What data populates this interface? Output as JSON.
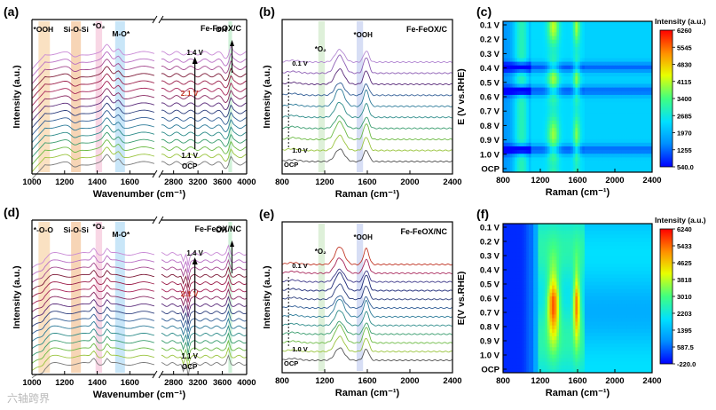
{
  "chart_data": [
    {
      "id": "a",
      "panel_label": "(a)",
      "type": "line",
      "title": "Fe-FeOX/C",
      "xlabel": "Wavenumber (cm⁻¹)",
      "ylabel": "Intensity (a.u.)",
      "xlim": [
        1000,
        4000
      ],
      "break_axis": true,
      "xticks": [
        "1000",
        "1200",
        "1400",
        "1600",
        "2800",
        "3200",
        "3600",
        "4000"
      ],
      "band_labels": [
        "*OOH",
        "Si-O-Si",
        "*O₂",
        "M-O*",
        "OH"
      ],
      "band_colors": [
        "#f6c890",
        "#f0b27a",
        "#f2b6d0",
        "#9cd2f2",
        "#a8e6b8"
      ],
      "series_count": 16,
      "potential_labels": [
        "1.4 V",
        "2.1 V",
        "1.1 V",
        "OCP"
      ],
      "series_colors": [
        "#7a7a7a",
        "#9ac43e",
        "#6dbb45",
        "#3a9d6e",
        "#2e8c8a",
        "#2f7c9a",
        "#335f97",
        "#2e3f7e",
        "#5a2b7a",
        "#8b2a63",
        "#a8265a",
        "#9c1f4a",
        "#7f1d3a",
        "#a54a8f",
        "#b86ec4",
        "#c98ad6"
      ]
    },
    {
      "id": "b",
      "panel_label": "(b)",
      "type": "line",
      "title": "Fe-FeOX/C",
      "xlabel": "Raman (cm⁻¹)",
      "ylabel": "Intensity (a.u.)",
      "xlim": [
        800,
        2400
      ],
      "xticks": [
        "800",
        "1200",
        "1600",
        "2000",
        "2400"
      ],
      "band_labels": [
        "*O₂",
        "*OOH"
      ],
      "peaks_cm": [
        1340,
        1590
      ],
      "series_count": 10,
      "potential_labels": [
        "0.1 V",
        "1.0 V",
        "OCP"
      ],
      "series_colors": [
        "#555555",
        "#9ac43e",
        "#6dbb45",
        "#3a9d6e",
        "#2e8c8a",
        "#2f7c9a",
        "#335f97",
        "#5a2b7a",
        "#8e5fb5",
        "#b48ad3"
      ]
    },
    {
      "id": "c",
      "panel_label": "(c)",
      "type": "heatmap",
      "xlabel": "Raman (cm⁻¹)",
      "ylabel": "E (V vs.RHE)",
      "xlim": [
        800,
        2400
      ],
      "xticks": [
        "800",
        "1200",
        "1600",
        "2000",
        "2400"
      ],
      "yticks": [
        "0.1 V",
        "0.2 V",
        "0.3 V",
        "0.4 V",
        "0.5 V",
        "0.6 V",
        "0.7 V",
        "0.8 V",
        "0.9 V",
        "1.0 V",
        "OCP"
      ],
      "peaks_cm": [
        1340,
        1590
      ],
      "colorbar_title": "Intensity (a.u.)",
      "colorbar_ticks": [
        "6260",
        "5545",
        "4830",
        "4115",
        "3400",
        "2685",
        "1970",
        "1255",
        "540.0"
      ],
      "vmin": 540,
      "vmax": 6260,
      "row_strength": [
        0.55,
        0.7,
        0.85,
        0.6,
        0.5,
        0.55,
        0.8,
        0.6,
        0.45,
        0.7,
        1.0
      ],
      "dark_band_rows": [
        3.0,
        4.6,
        8.6
      ]
    },
    {
      "id": "d",
      "panel_label": "(d)",
      "type": "line",
      "title": "Fe-FeOX/NC",
      "xlabel": "Wavenumber (cm⁻¹)",
      "ylabel": "Intensity (a.u.)",
      "xlim": [
        1000,
        4000
      ],
      "break_axis": true,
      "xticks": [
        "1000",
        "1200",
        "1400",
        "1600",
        "2800",
        "3200",
        "3600",
        "4000"
      ],
      "band_labels": [
        "*-O-O",
        "Si-O-Si",
        "*O₂",
        "M-O*",
        "OH"
      ],
      "band_colors": [
        "#f6c890",
        "#f0b27a",
        "#f2b6d0",
        "#9cd2f2",
        "#a8e6b8"
      ],
      "series_count": 16,
      "potential_labels": [
        "1.4 V",
        "2.1 V",
        "1.1 V",
        "OCP"
      ],
      "series_colors": [
        "#7a7a7a",
        "#9ac43e",
        "#6dbb45",
        "#3a9d6e",
        "#2e8c8a",
        "#2f7c9a",
        "#335f97",
        "#2e3f7e",
        "#5a2b7a",
        "#8b2a63",
        "#a8265a",
        "#9c1f4a",
        "#7f1d3a",
        "#a54a8f",
        "#b86ec4",
        "#c98ad6"
      ]
    },
    {
      "id": "e",
      "panel_label": "(e)",
      "type": "line",
      "title": "Fe-FeOX/NC",
      "xlabel": "Raman (cm⁻¹)",
      "ylabel": "Intensity (a.u.)",
      "xlim": [
        800,
        2400
      ],
      "xticks": [
        "800",
        "1200",
        "1600",
        "2000",
        "2400"
      ],
      "band_labels": [
        "*O₂",
        "*OOH"
      ],
      "peaks_cm": [
        1340,
        1590
      ],
      "series_count": 12,
      "potential_labels": [
        "0.1 V",
        "1.0 V",
        "OCP"
      ],
      "series_colors": [
        "#555555",
        "#9ac43e",
        "#6dbb45",
        "#3a9d6e",
        "#2e8c8a",
        "#2f7c9a",
        "#335f97",
        "#2e3f7e",
        "#1e2a78",
        "#3f3a8a",
        "#a8265a",
        "#c23a2a"
      ]
    },
    {
      "id": "f",
      "panel_label": "(f)",
      "type": "heatmap",
      "xlabel": "Raman (cm⁻¹)",
      "ylabel": "E(V vs.RHE)",
      "xlim": [
        800,
        2400
      ],
      "xticks": [
        "800",
        "1200",
        "1600",
        "2000",
        "2400"
      ],
      "yticks": [
        "0.1 V",
        "0.2 V",
        "0.3 V",
        "0.4 V",
        "0.5 V",
        "0.6 V",
        "0.7 V",
        "0.8 V",
        "0.9 V",
        "1.0 V",
        "OCP"
      ],
      "peaks_cm": [
        1340,
        1590
      ],
      "colorbar_title": "Intensity (a.u.)",
      "colorbar_ticks": [
        "6240",
        "5433",
        "4625",
        "3818",
        "3010",
        "2203",
        "1395",
        "587.5",
        "-220.0"
      ],
      "vmin": -220,
      "vmax": 6240,
      "row_strength": [
        0.45,
        0.5,
        0.55,
        0.6,
        0.75,
        1.0,
        0.95,
        0.75,
        0.6,
        0.55,
        0.5
      ],
      "dark_band_rows": []
    }
  ],
  "watermark": "六轴跨界"
}
